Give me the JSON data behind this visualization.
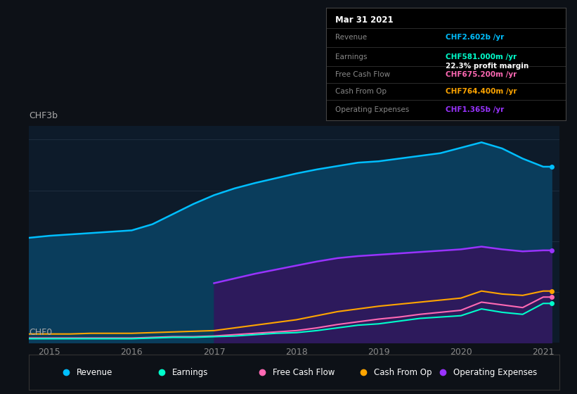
{
  "background_color": "#0d1117",
  "plot_bg_color": "#0d1b2a",
  "title_y_label": "CHF3b",
  "zero_y_label": "CHF0",
  "x_ticks": [
    2015,
    2016,
    2017,
    2018,
    2019,
    2020,
    2021
  ],
  "ylim": [
    0,
    3.2
  ],
  "years": [
    2014.75,
    2015.0,
    2015.25,
    2015.5,
    2015.75,
    2016.0,
    2016.25,
    2016.5,
    2016.75,
    2017.0,
    2017.25,
    2017.5,
    2017.75,
    2018.0,
    2018.25,
    2018.5,
    2018.75,
    2019.0,
    2019.25,
    2019.5,
    2019.75,
    2020.0,
    2020.25,
    2020.5,
    2020.75,
    2021.0,
    2021.1
  ],
  "revenue": [
    1.55,
    1.58,
    1.6,
    1.62,
    1.64,
    1.66,
    1.75,
    1.9,
    2.05,
    2.18,
    2.28,
    2.36,
    2.43,
    2.5,
    2.56,
    2.61,
    2.66,
    2.68,
    2.72,
    2.76,
    2.8,
    2.88,
    2.96,
    2.87,
    2.72,
    2.6,
    2.6
  ],
  "operating_expenses": [
    0.0,
    0.0,
    0.0,
    0.0,
    0.0,
    0.0,
    0.0,
    0.0,
    0.0,
    0.88,
    0.95,
    1.02,
    1.08,
    1.14,
    1.2,
    1.25,
    1.28,
    1.3,
    1.32,
    1.34,
    1.36,
    1.38,
    1.42,
    1.38,
    1.35,
    1.365,
    1.365
  ],
  "operating_expenses_start_year": 2016.75,
  "cash_from_op": [
    0.13,
    0.13,
    0.13,
    0.14,
    0.14,
    0.14,
    0.15,
    0.16,
    0.17,
    0.18,
    0.22,
    0.26,
    0.3,
    0.34,
    0.4,
    0.46,
    0.5,
    0.54,
    0.57,
    0.6,
    0.63,
    0.66,
    0.764,
    0.72,
    0.7,
    0.764,
    0.764
  ],
  "free_cash_flow": [
    0.07,
    0.07,
    0.07,
    0.07,
    0.07,
    0.07,
    0.08,
    0.09,
    0.09,
    0.1,
    0.12,
    0.14,
    0.16,
    0.18,
    0.22,
    0.27,
    0.31,
    0.35,
    0.38,
    0.42,
    0.45,
    0.48,
    0.6,
    0.56,
    0.52,
    0.675,
    0.675
  ],
  "earnings": [
    0.06,
    0.06,
    0.06,
    0.06,
    0.06,
    0.06,
    0.07,
    0.08,
    0.08,
    0.09,
    0.1,
    0.12,
    0.14,
    0.15,
    0.18,
    0.22,
    0.26,
    0.28,
    0.32,
    0.36,
    0.38,
    0.4,
    0.5,
    0.45,
    0.42,
    0.581,
    0.581
  ],
  "revenue_color": "#00bfff",
  "earnings_color": "#00ffcc",
  "free_cash_flow_color": "#ff69b4",
  "cash_from_op_color": "#ffa500",
  "operating_expenses_color": "#9933ff",
  "revenue_fill_color": "#0a3d5c",
  "operating_expenses_fill_color": "#2d1a5c",
  "tooltip_bg": "#000000",
  "tooltip_border": "#444444",
  "tooltip_title": "Mar 31 2021",
  "tooltip_revenue_label": "Revenue",
  "tooltip_revenue_value": "CHF2.602b /yr",
  "tooltip_earnings_label": "Earnings",
  "tooltip_earnings_value": "CHF581.000m /yr",
  "tooltip_margin_value": "22.3% profit margin",
  "tooltip_fcf_label": "Free Cash Flow",
  "tooltip_fcf_value": "CHF675.200m /yr",
  "tooltip_cashop_label": "Cash From Op",
  "tooltip_cashop_value": "CHF764.400m /yr",
  "tooltip_opex_label": "Operating Expenses",
  "tooltip_opex_value": "CHF1.365b /yr",
  "legend_labels": [
    "Revenue",
    "Earnings",
    "Free Cash Flow",
    "Cash From Op",
    "Operating Expenses"
  ],
  "legend_colors": [
    "#00bfff",
    "#00ffcc",
    "#ff69b4",
    "#ffa500",
    "#9933ff"
  ]
}
